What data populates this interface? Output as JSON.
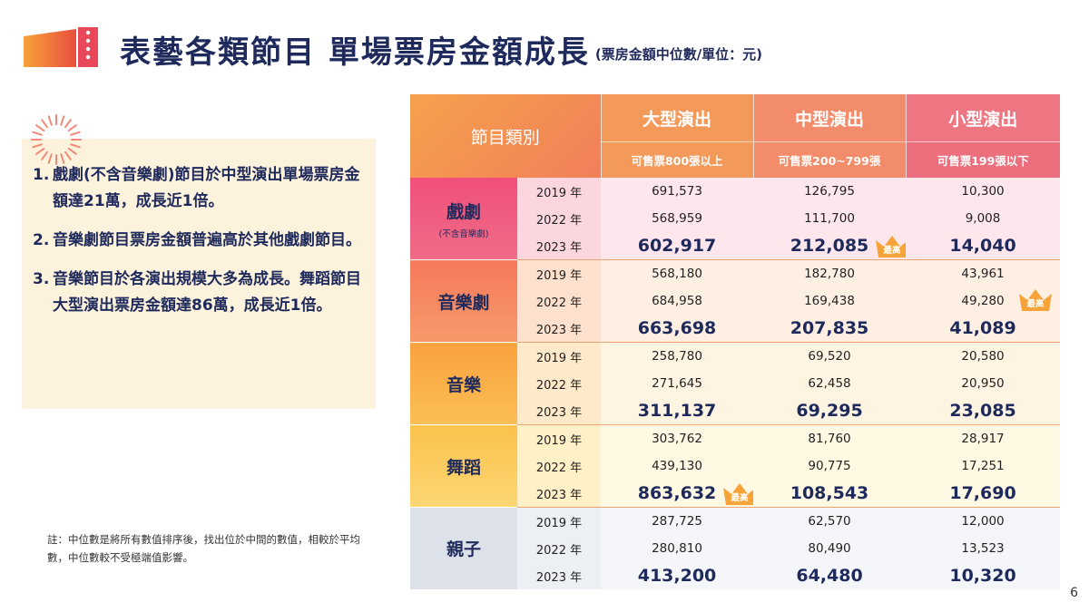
{
  "title": "表藝各類節目 單場票房金額成長",
  "subtitle": "(票房金額中位數/單位：元)",
  "notes": [
    {
      "num": "1.",
      "text": "戲劇(不含音樂劇)節目於中型演出單場票房金額達21萬，成長近1倍。"
    },
    {
      "num": "2.",
      "text": "音樂劇節目票房金額普遍高於其他戲劇節目。"
    },
    {
      "num": "3.",
      "text": "音樂節目於各演出規模大多為成長。舞蹈節目大型演出票房金額達86萬，成長近1倍。"
    }
  ],
  "footnote": "註：中位數是將所有數值排序後，找出位於中間的數值，相較於平均數，中位數較不受極端值影響。",
  "page_number": "6",
  "crown_label": "最高",
  "table": {
    "category_header": "節目類別",
    "year_suffix": "年",
    "columns": [
      {
        "name": "大型演出",
        "sub": "可售票800張以上"
      },
      {
        "name": "中型演出",
        "sub": "可售票200~799張"
      },
      {
        "name": "小型演出",
        "sub": "可售票199張以下"
      }
    ],
    "groups": [
      {
        "name": "戲劇",
        "note": "(不含音樂劇)",
        "rows": [
          {
            "year": "2019",
            "values": [
              "691,573",
              "126,795",
              "10,300"
            ]
          },
          {
            "year": "2022",
            "values": [
              "568,959",
              "111,700",
              "9,008"
            ]
          },
          {
            "year": "2023",
            "values": [
              "602,917",
              "212,085",
              "14,040"
            ]
          }
        ]
      },
      {
        "name": "音樂劇",
        "note": "",
        "rows": [
          {
            "year": "2019",
            "values": [
              "568,180",
              "182,780",
              "43,961"
            ]
          },
          {
            "year": "2022",
            "values": [
              "684,958",
              "169,438",
              "49,280"
            ]
          },
          {
            "year": "2023",
            "values": [
              "663,698",
              "207,835",
              "41,089"
            ]
          }
        ]
      },
      {
        "name": "音樂",
        "note": "",
        "rows": [
          {
            "year": "2019",
            "values": [
              "258,780",
              "69,520",
              "20,580"
            ]
          },
          {
            "year": "2022",
            "values": [
              "271,645",
              "62,458",
              "20,950"
            ]
          },
          {
            "year": "2023",
            "values": [
              "311,137",
              "69,295",
              "23,085"
            ]
          }
        ]
      },
      {
        "name": "舞蹈",
        "note": "",
        "rows": [
          {
            "year": "2019",
            "values": [
              "303,762",
              "81,760",
              "28,917"
            ]
          },
          {
            "year": "2022",
            "values": [
              "439,130",
              "90,775",
              "17,251"
            ]
          },
          {
            "year": "2023",
            "values": [
              "863,632",
              "108,543",
              "17,690"
            ]
          }
        ]
      },
      {
        "name": "親子",
        "note": "",
        "rows": [
          {
            "year": "2019",
            "values": [
              "287,725",
              "62,570",
              "12,000"
            ]
          },
          {
            "year": "2022",
            "values": [
              "280,810",
              "80,490",
              "13,523"
            ]
          },
          {
            "year": "2023",
            "values": [
              "413,200",
              "64,480",
              "10,320"
            ]
          }
        ]
      }
    ],
    "highest_marks": [
      {
        "group": "戲劇",
        "year": "2023",
        "column": "中型演出"
      },
      {
        "group": "音樂劇",
        "year": "2022",
        "column": "小型演出"
      },
      {
        "group": "舞蹈",
        "year": "2023",
        "column": "大型演出"
      }
    ]
  },
  "colors": {
    "title": "#1f2a5c",
    "accent_orange": "#f39a5a",
    "accent_pink": "#ec6f7e",
    "notes_background": "#fdf3dc"
  }
}
